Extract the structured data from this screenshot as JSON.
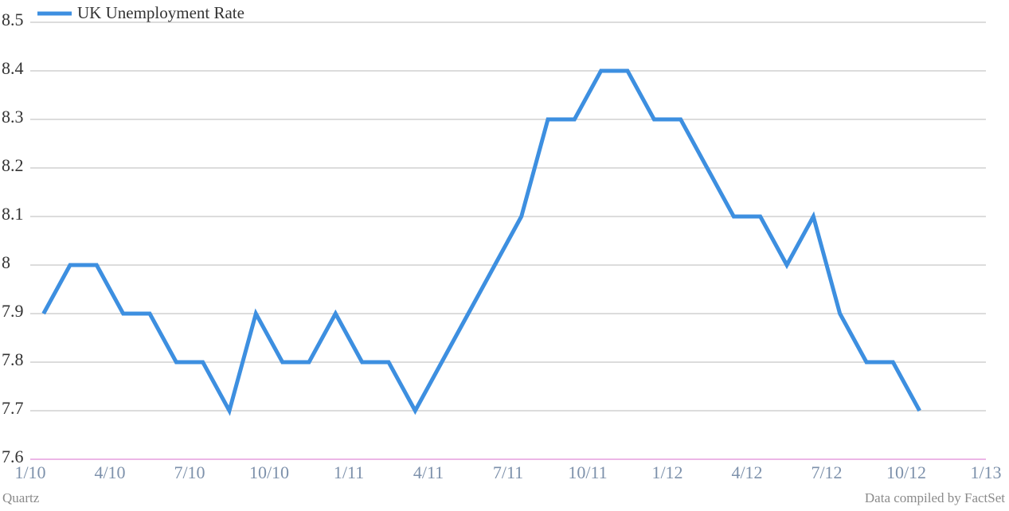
{
  "chart_data": {
    "type": "line",
    "x": [
      "2010-01",
      "2010-02",
      "2010-03",
      "2010-04",
      "2010-05",
      "2010-06",
      "2010-07",
      "2010-08",
      "2010-09",
      "2010-10",
      "2010-11",
      "2010-12",
      "2011-01",
      "2011-02",
      "2011-03",
      "2011-04",
      "2011-05",
      "2011-06",
      "2011-07",
      "2011-08",
      "2011-09",
      "2011-10",
      "2011-11",
      "2011-12",
      "2012-01",
      "2012-02",
      "2012-03",
      "2012-04",
      "2012-05",
      "2012-06",
      "2012-07",
      "2012-08",
      "2012-09",
      "2012-10"
    ],
    "series": [
      {
        "name": "UK Unemployment Rate",
        "color": "#3d8fe0",
        "values": [
          7.9,
          8.0,
          8.0,
          7.9,
          7.9,
          7.8,
          7.8,
          7.7,
          7.9,
          7.8,
          7.8,
          7.9,
          7.8,
          7.8,
          7.7,
          7.8,
          7.9,
          8.0,
          8.1,
          8.3,
          8.3,
          8.4,
          8.4,
          8.3,
          8.3,
          8.2,
          8.1,
          8.1,
          8.0,
          8.1,
          7.9,
          7.8,
          7.8,
          7.7
        ]
      }
    ],
    "xlim": [
      "2010-01",
      "2013-01"
    ],
    "xticks": [
      {
        "value": "2010-01",
        "label": "1/10"
      },
      {
        "value": "2010-04",
        "label": "4/10"
      },
      {
        "value": "2010-07",
        "label": "7/10"
      },
      {
        "value": "2010-10",
        "label": "10/10"
      },
      {
        "value": "2011-01",
        "label": "1/11"
      },
      {
        "value": "2011-04",
        "label": "4/11"
      },
      {
        "value": "2011-07",
        "label": "7/11"
      },
      {
        "value": "2011-10",
        "label": "10/11"
      },
      {
        "value": "2012-01",
        "label": "1/12"
      },
      {
        "value": "2012-04",
        "label": "4/12"
      },
      {
        "value": "2012-07",
        "label": "7/12"
      },
      {
        "value": "2012-10",
        "label": "10/12"
      },
      {
        "value": "2013-01",
        "label": "1/13"
      }
    ],
    "ylim": [
      7.6,
      8.5
    ],
    "yticks": [
      7.6,
      7.7,
      7.8,
      7.9,
      8,
      8.1,
      8.2,
      8.3,
      8.4,
      8.5
    ],
    "grid": true,
    "legend": "top-left",
    "credit": "Quartz",
    "source": "Data compiled by FactSet"
  }
}
